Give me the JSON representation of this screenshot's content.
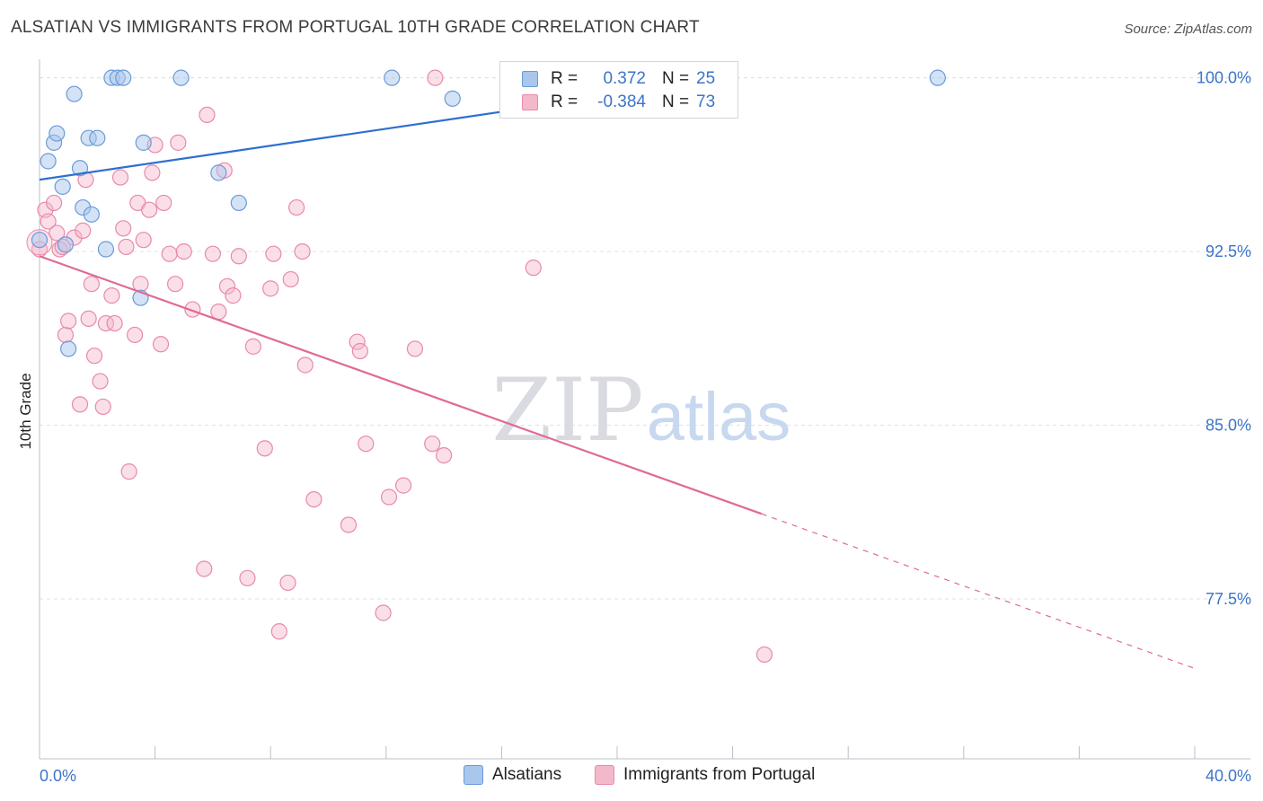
{
  "title": "ALSATIAN VS IMMIGRANTS FROM PORTUGAL 10TH GRADE CORRELATION CHART",
  "source": "Source: ZipAtlas.com",
  "watermark": {
    "zip": "ZIP",
    "atlas": "atlas"
  },
  "legend": {
    "r_label": "R =",
    "n_label": "N =",
    "rows": [
      {
        "r": "0.372",
        "n": "25"
      },
      {
        "r": "-0.384",
        "n": "73"
      }
    ]
  },
  "bottom_legend": [
    "Alsatians",
    "Immigrants from Portugal"
  ],
  "colors": {
    "alsatians_fill": "#a9c6ec",
    "alsatians_stroke": "#6a9bd8",
    "alsatians_line": "#2f6fcf",
    "portugal_fill": "#f4b8cb",
    "portugal_stroke": "#e88aa8",
    "portugal_line": "#e06a95",
    "tick_text": "#3c74c8",
    "grid": "#dde2ea"
  },
  "chart_data": {
    "type": "scatter",
    "title": "ALSATIAN VS IMMIGRANTS FROM PORTUGAL 10TH GRADE CORRELATION CHART",
    "xlabel": "",
    "ylabel": "10th Grade",
    "xlim": [
      0,
      40
    ],
    "ylim": [
      70.6,
      100.8
    ],
    "x_tick_labels": [
      "0.0%",
      "40.0%"
    ],
    "y_ticks": [
      77.5,
      85.0,
      92.5,
      100.0
    ],
    "y_tick_labels": [
      "77.5%",
      "85.0%",
      "92.5%",
      "100.0%"
    ],
    "grid": true,
    "legend_position": "top-center",
    "series": [
      {
        "name": "Alsatians",
        "R": 0.372,
        "N": 25,
        "trend": {
          "x0": 0.0,
          "y0": 95.6,
          "x1": 24.0,
          "y1": 100.0,
          "solid_until": 24.0
        },
        "points": [
          [
            0.0,
            93.0
          ],
          [
            0.3,
            96.4
          ],
          [
            0.5,
            97.2
          ],
          [
            0.6,
            97.6
          ],
          [
            0.8,
            95.3
          ],
          [
            0.9,
            92.8
          ],
          [
            1.0,
            88.3
          ],
          [
            1.2,
            99.3
          ],
          [
            1.4,
            96.1
          ],
          [
            1.5,
            94.4
          ],
          [
            1.7,
            97.4
          ],
          [
            1.8,
            94.1
          ],
          [
            2.0,
            97.4
          ],
          [
            2.3,
            92.6
          ],
          [
            2.5,
            100.0
          ],
          [
            2.7,
            100.0
          ],
          [
            2.9,
            100.0
          ],
          [
            3.5,
            90.5
          ],
          [
            3.6,
            97.2
          ],
          [
            4.9,
            100.0
          ],
          [
            6.2,
            95.9
          ],
          [
            6.9,
            94.6
          ],
          [
            12.2,
            100.0
          ],
          [
            14.3,
            99.1
          ],
          [
            31.1,
            100.0
          ]
        ]
      },
      {
        "name": "Immigrants from Portugal",
        "R": -0.384,
        "N": 73,
        "trend": {
          "x0": 0.0,
          "y0": 92.3,
          "x1": 40.0,
          "y1": 74.5,
          "solid_until": 25.0
        },
        "points": [
          [
            0.0,
            92.6
          ],
          [
            0.2,
            94.3
          ],
          [
            0.3,
            93.8
          ],
          [
            0.5,
            94.6
          ],
          [
            0.6,
            93.3
          ],
          [
            0.7,
            92.6
          ],
          [
            0.8,
            92.7
          ],
          [
            0.9,
            88.9
          ],
          [
            1.0,
            89.5
          ],
          [
            1.2,
            93.1
          ],
          [
            1.4,
            85.9
          ],
          [
            1.5,
            93.4
          ],
          [
            1.6,
            95.6
          ],
          [
            1.7,
            89.6
          ],
          [
            1.8,
            91.1
          ],
          [
            1.9,
            88.0
          ],
          [
            2.1,
            86.9
          ],
          [
            2.2,
            85.8
          ],
          [
            2.3,
            89.4
          ],
          [
            2.5,
            90.6
          ],
          [
            2.6,
            89.4
          ],
          [
            2.8,
            95.7
          ],
          [
            2.9,
            93.5
          ],
          [
            3.0,
            92.7
          ],
          [
            3.1,
            83.0
          ],
          [
            3.3,
            88.9
          ],
          [
            3.4,
            94.6
          ],
          [
            3.5,
            91.1
          ],
          [
            3.6,
            93.0
          ],
          [
            3.8,
            94.3
          ],
          [
            3.9,
            95.9
          ],
          [
            4.0,
            97.1
          ],
          [
            4.2,
            88.5
          ],
          [
            4.3,
            94.6
          ],
          [
            4.5,
            92.4
          ],
          [
            4.7,
            91.1
          ],
          [
            4.8,
            97.2
          ],
          [
            5.0,
            92.5
          ],
          [
            5.3,
            90.0
          ],
          [
            5.7,
            78.8
          ],
          [
            5.8,
            98.4
          ],
          [
            6.0,
            92.4
          ],
          [
            6.2,
            89.9
          ],
          [
            6.4,
            96.0
          ],
          [
            6.5,
            91.0
          ],
          [
            6.7,
            90.6
          ],
          [
            6.9,
            92.3
          ],
          [
            7.2,
            78.4
          ],
          [
            7.4,
            88.4
          ],
          [
            7.8,
            84.0
          ],
          [
            8.0,
            90.9
          ],
          [
            8.1,
            92.4
          ],
          [
            8.3,
            76.1
          ],
          [
            8.6,
            78.2
          ],
          [
            8.7,
            91.3
          ],
          [
            8.9,
            94.4
          ],
          [
            9.1,
            92.5
          ],
          [
            9.2,
            87.6
          ],
          [
            9.5,
            81.8
          ],
          [
            10.7,
            80.7
          ],
          [
            11.0,
            88.6
          ],
          [
            11.1,
            88.2
          ],
          [
            11.3,
            84.2
          ],
          [
            11.9,
            76.9
          ],
          [
            12.1,
            81.9
          ],
          [
            12.6,
            82.4
          ],
          [
            13.0,
            88.3
          ],
          [
            13.6,
            84.2
          ],
          [
            13.7,
            100.0
          ],
          [
            14.0,
            83.7
          ],
          [
            16.5,
            100.0
          ],
          [
            17.1,
            91.8
          ],
          [
            25.1,
            75.1
          ]
        ]
      }
    ]
  }
}
